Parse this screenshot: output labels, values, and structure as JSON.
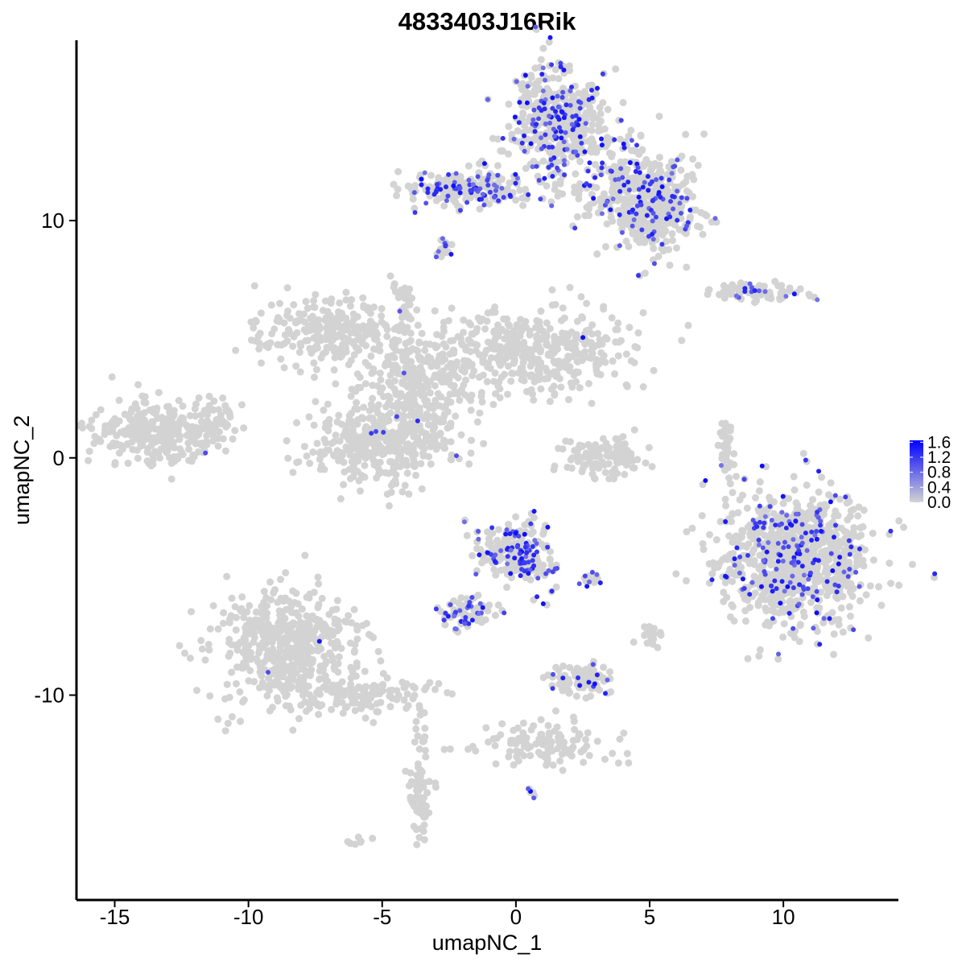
{
  "chart_data": {
    "type": "scatter",
    "title": "4833403J16Rik",
    "xlabel": "umapNC_1",
    "ylabel": "umapNC_2",
    "xlim": [
      -16.4,
      14.3
    ],
    "ylim": [
      -18.6,
      17.6
    ],
    "xticks": [
      -15,
      -10,
      -5,
      0,
      5,
      10
    ],
    "yticks": [
      -10,
      0,
      10
    ],
    "xtick_labels": [
      "-15",
      "-10",
      "-5",
      "0",
      "5",
      "10"
    ],
    "ytick_labels": [
      "-10",
      "0",
      "10"
    ],
    "grid": false,
    "legend": {
      "placement": "right",
      "type": "colorbar",
      "min": 0.0,
      "max": 1.65,
      "labels": [
        "1.6",
        "1.2",
        "0.8",
        "0.4",
        "0.0"
      ],
      "label_values": [
        1.6,
        1.2,
        0.8,
        0.4,
        0.0
      ],
      "low_color": "#D3D3D3",
      "high_color": "#0000FF"
    },
    "colors": {
      "zero": "#D3D3D3",
      "low": "#D3D3D3",
      "high": "#0000FF"
    },
    "clusters": [
      {
        "name": "top-left-arm",
        "cx": -1.8,
        "cy": 11.4,
        "sx": 1.5,
        "sy": 0.45,
        "n": 170,
        "expr_frac": 0.45
      },
      {
        "name": "top-lobe",
        "cx": 1.6,
        "cy": 14.2,
        "sx": 1.0,
        "sy": 1.3,
        "n": 400,
        "expr_frac": 0.3
      },
      {
        "name": "top-right-ext",
        "cx": 4.5,
        "cy": 11.4,
        "sx": 1.2,
        "sy": 1.1,
        "n": 280,
        "expr_frac": 0.25
      },
      {
        "name": "top-right-tail",
        "cx": 5.3,
        "cy": 10.0,
        "sx": 0.9,
        "sy": 0.9,
        "n": 180,
        "expr_frac": 0.2
      },
      {
        "name": "top-small",
        "cx": -2.7,
        "cy": 8.9,
        "sx": 0.15,
        "sy": 0.25,
        "n": 12,
        "expr_frac": 0.4
      },
      {
        "name": "center-left-lobe",
        "cx": -7.0,
        "cy": 5.3,
        "sx": 1.6,
        "sy": 0.8,
        "n": 260,
        "expr_frac": 0.0
      },
      {
        "name": "center-right-lobe",
        "cx": 0.5,
        "cy": 4.5,
        "sx": 2.4,
        "sy": 1.0,
        "n": 420,
        "expr_frac": 0.005
      },
      {
        "name": "center-bridge",
        "cx": -3.6,
        "cy": 3.2,
        "sx": 1.3,
        "sy": 1.3,
        "n": 250,
        "expr_frac": 0.005
      },
      {
        "name": "center-bottom-lobe",
        "cx": -5.0,
        "cy": 0.6,
        "sx": 1.5,
        "sy": 0.9,
        "n": 380,
        "expr_frac": 0.005
      },
      {
        "name": "center-spike",
        "cx": -4.2,
        "cy": 6.2,
        "sx": 0.25,
        "sy": 1.0,
        "n": 40,
        "expr_frac": 0.05
      },
      {
        "name": "far-left",
        "cx": -13.3,
        "cy": 1.1,
        "sx": 1.4,
        "sy": 0.8,
        "n": 300,
        "expr_frac": 0.003
      },
      {
        "name": "far-left-wing",
        "cx": -11.3,
        "cy": 1.6,
        "sx": 0.5,
        "sy": 0.6,
        "n": 40,
        "expr_frac": 0.0
      },
      {
        "name": "bottom-left-lobe",
        "cx": -8.6,
        "cy": -8.0,
        "sx": 1.5,
        "sy": 1.4,
        "n": 520,
        "expr_frac": 0.002
      },
      {
        "name": "bottom-left-arm",
        "cx": -5.5,
        "cy": -10.0,
        "sx": 1.4,
        "sy": 0.5,
        "n": 130,
        "expr_frac": 0.0
      },
      {
        "name": "bottom-left-stem",
        "cx": -3.6,
        "cy": -13.5,
        "sx": 0.3,
        "sy": 1.5,
        "n": 70,
        "expr_frac": 0.0
      },
      {
        "name": "center-mid-lower",
        "cx": 0.0,
        "cy": -4.0,
        "sx": 0.9,
        "sy": 0.8,
        "n": 190,
        "expr_frac": 0.45
      },
      {
        "name": "center-mid-arm",
        "cx": -1.7,
        "cy": -6.5,
        "sx": 0.6,
        "sy": 0.4,
        "n": 60,
        "expr_frac": 0.45
      },
      {
        "name": "right-blob",
        "cx": 10.5,
        "cy": -4.3,
        "sx": 1.6,
        "sy": 1.6,
        "n": 850,
        "expr_frac": 0.22
      },
      {
        "name": "right-small-top",
        "cx": 8.8,
        "cy": 7.0,
        "sx": 1.2,
        "sy": 0.2,
        "n": 80,
        "expr_frac": 0.12
      },
      {
        "name": "right-thin",
        "cx": 7.9,
        "cy": 0.5,
        "sx": 0.15,
        "sy": 0.8,
        "n": 40,
        "expr_frac": 0.02
      },
      {
        "name": "center-small-right",
        "cx": 3.2,
        "cy": 0.0,
        "sx": 0.9,
        "sy": 0.5,
        "n": 120,
        "expr_frac": 0.0
      },
      {
        "name": "bottom-center-small",
        "cx": 2.4,
        "cy": -9.3,
        "sx": 0.7,
        "sy": 0.4,
        "n": 80,
        "expr_frac": 0.08
      },
      {
        "name": "bottom-center-line",
        "cx": 1.0,
        "cy": -12.0,
        "sx": 1.6,
        "sy": 0.6,
        "n": 120,
        "expr_frac": 0.0
      },
      {
        "name": "bottom-right-small",
        "cx": 5.1,
        "cy": -7.5,
        "sx": 0.25,
        "sy": 0.2,
        "n": 20,
        "expr_frac": 0.0
      },
      {
        "name": "mid-dots",
        "cx": 2.8,
        "cy": -5.1,
        "sx": 0.2,
        "sy": 0.1,
        "n": 10,
        "expr_frac": 0.5
      },
      {
        "name": "low-mini",
        "cx": 0.6,
        "cy": -14.1,
        "sx": 0.1,
        "sy": 0.1,
        "n": 6,
        "expr_frac": 0.5
      },
      {
        "name": "bottom-mini",
        "cx": -5.9,
        "cy": -16.2,
        "sx": 0.2,
        "sy": 0.1,
        "n": 8,
        "expr_frac": 0.0
      }
    ]
  }
}
